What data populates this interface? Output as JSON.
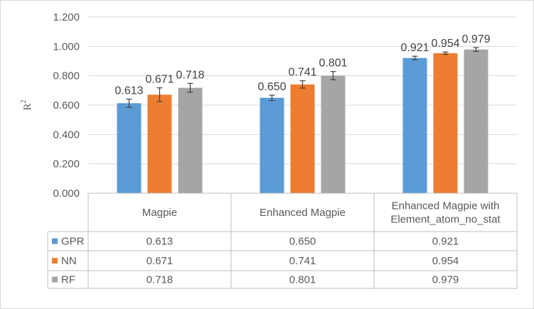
{
  "chart_data": {
    "type": "bar",
    "title": "",
    "xlabel": "",
    "ylabel": "R",
    "ylabel_superscript": "2",
    "ylim": [
      0,
      1.2
    ],
    "yticks": [
      0,
      0.2,
      0.4,
      0.6,
      0.8,
      1.0,
      1.2
    ],
    "ytick_labels": [
      "0.000",
      "0.200",
      "0.400",
      "0.600",
      "0.800",
      "1.000",
      "1.200"
    ],
    "categories": [
      [
        "Magpie"
      ],
      [
        "Enhanced Magpie"
      ],
      [
        "Enhanced Magpie with",
        "Element_atom_no_stat"
      ]
    ],
    "series": [
      {
        "name": "GPR",
        "color": "#5b9bd5",
        "values": [
          0.613,
          0.65,
          0.921
        ],
        "labels": [
          "0.613",
          "0.650",
          "0.921"
        ],
        "errors": [
          0.028,
          0.018,
          0.012
        ]
      },
      {
        "name": "NN",
        "color": "#ed7d31",
        "values": [
          0.671,
          0.741,
          0.954
        ],
        "labels": [
          "0.671",
          "0.741",
          "0.954"
        ],
        "errors": [
          0.047,
          0.025,
          0.008
        ]
      },
      {
        "name": "RF",
        "color": "#a5a5a5",
        "values": [
          0.718,
          0.801,
          0.979
        ],
        "labels": [
          "0.718",
          "0.801",
          "0.979"
        ],
        "errors": [
          0.03,
          0.028,
          0.013
        ]
      }
    ],
    "grid": true,
    "legend": "data table below chart"
  }
}
